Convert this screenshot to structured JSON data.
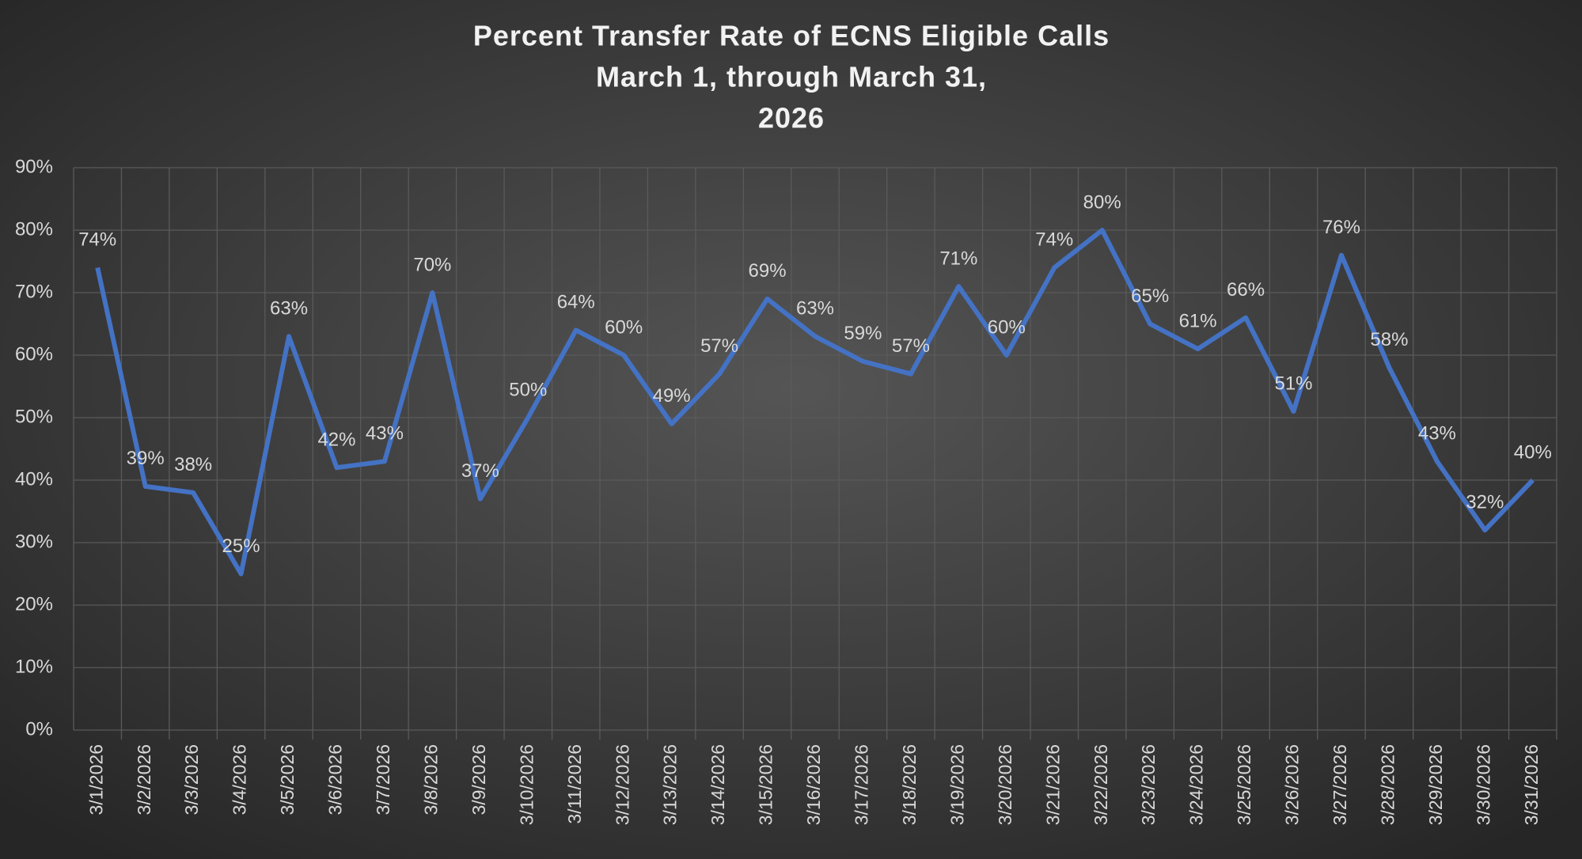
{
  "chart_data": {
    "type": "line",
    "title_lines": [
      "Percent Transfer Rate of ECNS Eligible Calls",
      "March 1, through March 31,",
      "2026"
    ],
    "categories": [
      "3/1/2026",
      "3/2/2026",
      "3/3/2026",
      "3/4/2026",
      "3/5/2026",
      "3/6/2026",
      "3/7/2026",
      "3/8/2026",
      "3/9/2026",
      "3/10/2026",
      "3/11/2026",
      "3/12/2026",
      "3/13/2026",
      "3/14/2026",
      "3/15/2026",
      "3/16/2026",
      "3/17/2026",
      "3/18/2026",
      "3/19/2026",
      "3/20/2026",
      "3/21/2026",
      "3/22/2026",
      "3/23/2026",
      "3/24/2026",
      "3/25/2026",
      "3/26/2026",
      "3/27/2026",
      "3/28/2026",
      "3/29/2026",
      "3/30/2026",
      "3/31/2026"
    ],
    "values": [
      74,
      39,
      38,
      25,
      63,
      42,
      43,
      70,
      37,
      50,
      64,
      60,
      49,
      57,
      69,
      63,
      59,
      57,
      71,
      60,
      74,
      80,
      65,
      61,
      66,
      51,
      76,
      58,
      43,
      32,
      40
    ],
    "value_labels": [
      "74%",
      "39%",
      "38%",
      "25%",
      "63%",
      "42%",
      "43%",
      "70%",
      "37%",
      "50%",
      "64%",
      "60%",
      "49%",
      "57%",
      "69%",
      "63%",
      "59%",
      "57%",
      "71%",
      "60%",
      "74%",
      "80%",
      "65%",
      "61%",
      "66%",
      "51%",
      "76%",
      "58%",
      "43%",
      "32%",
      "40%"
    ],
    "color": "#4472c4",
    "ylim": [
      0,
      90
    ],
    "yticks": [
      {
        "value": 0,
        "label": "0%"
      },
      {
        "value": 10,
        "label": "10%"
      },
      {
        "value": 20,
        "label": "20%"
      },
      {
        "value": 30,
        "label": "30%"
      },
      {
        "value": 40,
        "label": "40%"
      },
      {
        "value": 50,
        "label": "50%"
      },
      {
        "value": 60,
        "label": "60%"
      },
      {
        "value": 70,
        "label": "70%"
      },
      {
        "value": 80,
        "label": "80%"
      },
      {
        "value": 90,
        "label": "90%"
      }
    ],
    "grid": true
  }
}
